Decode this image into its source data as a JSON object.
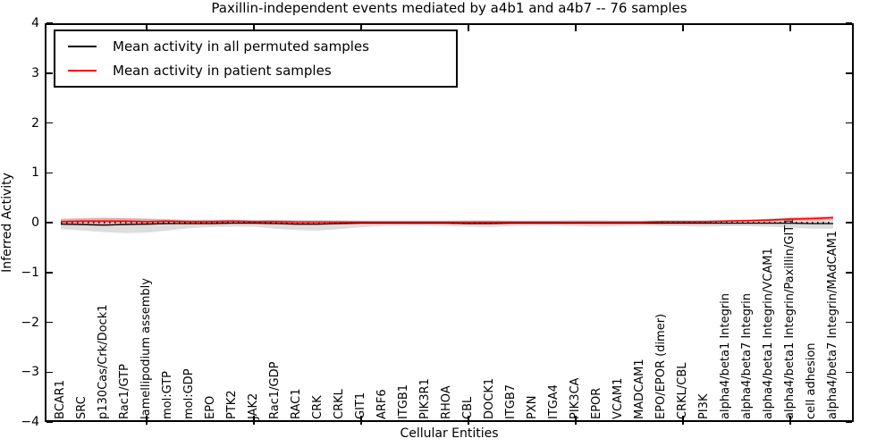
{
  "chart_data": {
    "type": "line",
    "title": "Paxillin-independent events mediated by a4b1 and a4b7 -- 76 samples",
    "xlabel": "Cellular Entities",
    "ylabel": "Inferred Activity",
    "ylim": [
      -4,
      4
    ],
    "yticks": [
      4,
      3,
      2,
      1,
      0,
      -1,
      -2,
      -3,
      -4
    ],
    "xtick_category_indices": [
      4,
      9,
      14,
      19,
      24,
      29,
      34
    ],
    "grid": false,
    "legend_position": "upper left",
    "zero_reference_line": {
      "y": 0,
      "style": "dotted",
      "color": "#000000"
    },
    "categories": [
      "BCAR1",
      "SRC",
      "p130Cas/Crk/Dock1",
      "Rac1/GTP",
      "lamellipodium assembly",
      "mol:GTP",
      "mol:GDP",
      "EPO",
      "PTK2",
      "JAK2",
      "Rac1/GDP",
      "RAC1",
      "CRK",
      "CRKL",
      "GIT1",
      "ARF6",
      "ITGB1",
      "PIK3R1",
      "RHOA",
      "CBL",
      "DOCK1",
      "ITGB7",
      "PXN",
      "ITGA4",
      "PIK3CA",
      "EPOR",
      "VCAM1",
      "MADCAM1",
      "EPO/EPOR (dimer)",
      "CRKL/CBL",
      "PI3K",
      "alpha4/beta1 Integrin",
      "alpha4/beta7 Integrin",
      "alpha4/beta1 Integrin/VCAM1",
      "alpha4/beta1 Integrin/Paxillin/GIT1",
      "cell adhesion",
      "alpha4/beta7 Integrin/MAdCAM1"
    ],
    "series": [
      {
        "name": "Mean activity in all permuted samples",
        "color": "#000000",
        "values": [
          -0.03,
          -0.04,
          -0.05,
          -0.04,
          -0.03,
          -0.02,
          -0.02,
          -0.02,
          -0.01,
          -0.01,
          -0.02,
          -0.03,
          -0.03,
          -0.02,
          -0.01,
          -0.01,
          -0.01,
          -0.01,
          -0.01,
          -0.02,
          -0.02,
          -0.01,
          -0.01,
          -0.01,
          -0.01,
          -0.01,
          -0.01,
          -0.01,
          -0.01,
          -0.01,
          -0.01,
          -0.01,
          -0.01,
          -0.01,
          -0.01,
          -0.02,
          -0.02
        ]
      },
      {
        "name": "Mean activity in patient samples",
        "color": "#ff0000",
        "values": [
          0.02,
          0.03,
          0.03,
          0.03,
          0.02,
          0.03,
          0.02,
          0.02,
          0.03,
          0.02,
          0.02,
          0.01,
          0.01,
          0.01,
          0.01,
          0.01,
          0.01,
          0.01,
          0.01,
          0.01,
          0.01,
          0.01,
          0.01,
          0.01,
          0.01,
          0.01,
          0.01,
          0.01,
          0.02,
          0.02,
          0.02,
          0.03,
          0.04,
          0.05,
          0.07,
          0.08,
          0.1
        ]
      }
    ],
    "bands": [
      {
        "name": "permuted samples spread",
        "color": "#909090",
        "opacity": 0.3,
        "upper": [
          0.07,
          0.08,
          0.09,
          0.09,
          0.08,
          0.06,
          0.05,
          0.05,
          0.05,
          0.05,
          0.06,
          0.05,
          0.05,
          0.05,
          0.04,
          0.04,
          0.04,
          0.04,
          0.04,
          0.05,
          0.05,
          0.04,
          0.04,
          0.04,
          0.05,
          0.05,
          0.04,
          0.04,
          0.05,
          0.05,
          0.05,
          0.05,
          0.06,
          0.07,
          0.09,
          0.1,
          0.1
        ],
        "lower": [
          -0.13,
          -0.16,
          -0.19,
          -0.21,
          -0.2,
          -0.16,
          -0.11,
          -0.09,
          -0.08,
          -0.08,
          -0.12,
          -0.15,
          -0.16,
          -0.13,
          -0.09,
          -0.07,
          -0.06,
          -0.06,
          -0.07,
          -0.08,
          -0.09,
          -0.07,
          -0.06,
          -0.06,
          -0.07,
          -0.08,
          -0.07,
          -0.06,
          -0.07,
          -0.07,
          -0.08,
          -0.07,
          -0.07,
          -0.08,
          -0.1,
          -0.12,
          -0.12
        ]
      },
      {
        "name": "patient samples spread",
        "color": "#ff0000",
        "opacity": 0.22,
        "upper": [
          0.08,
          0.09,
          0.1,
          0.09,
          0.08,
          0.07,
          0.06,
          0.06,
          0.06,
          0.05,
          0.05,
          0.04,
          0.04,
          0.03,
          0.03,
          0.02,
          0.02,
          0.02,
          0.02,
          0.02,
          0.02,
          0.02,
          0.02,
          0.02,
          0.02,
          0.02,
          0.02,
          0.02,
          0.03,
          0.03,
          0.04,
          0.05,
          0.06,
          0.08,
          0.11,
          0.12,
          0.14
        ],
        "lower": [
          -0.04,
          -0.04,
          -0.05,
          -0.05,
          -0.04,
          -0.03,
          -0.02,
          -0.02,
          -0.01,
          -0.01,
          -0.01,
          -0.01,
          0.0,
          0.0,
          0.0,
          0.0,
          0.0,
          0.0,
          0.0,
          0.0,
          0.0,
          0.0,
          0.0,
          0.0,
          0.0,
          0.0,
          0.0,
          0.0,
          0.0,
          0.01,
          0.01,
          0.01,
          0.02,
          0.02,
          0.03,
          0.04,
          0.06
        ]
      }
    ]
  },
  "legend": {
    "items": [
      {
        "label": "Mean activity in all permuted samples",
        "color": "#000000"
      },
      {
        "label": "Mean activity in patient samples",
        "color": "#ff0000"
      }
    ]
  }
}
